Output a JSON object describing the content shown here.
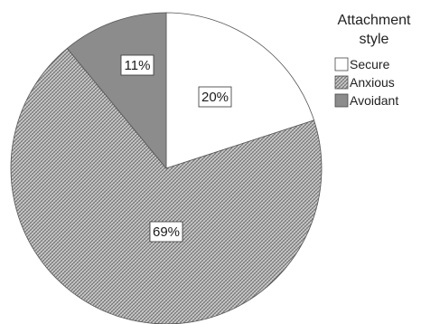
{
  "chart_data": {
    "type": "pie",
    "slices": [
      {
        "label": "Secure",
        "value": 20,
        "display": "20%",
        "color": "#ffffff",
        "pattern": "none"
      },
      {
        "label": "Anxious",
        "value": 69,
        "display": "69%",
        "color": "#9a9a9a",
        "pattern": "crosshatch"
      },
      {
        "label": "Avoidant",
        "value": 11,
        "display": "11%",
        "color": "#8c8c8c",
        "pattern": "solid"
      }
    ],
    "legend": {
      "title_lines": [
        "Attachment",
        "style"
      ],
      "placement": "top-right"
    }
  }
}
